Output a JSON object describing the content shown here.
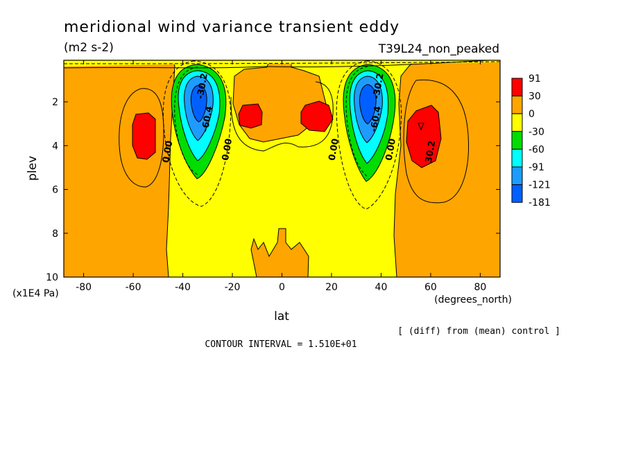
{
  "chart_data": {
    "type": "contour",
    "title": "meridional wind variance transient eddy",
    "units": "(m2 s-2)",
    "run_label": "T39L24_non_peaked",
    "xlabel": "lat",
    "xunits": "(degrees_north)",
    "ylabel": "plev",
    "yunits": "(x1E4 Pa)",
    "xlim": [
      -88,
      88
    ],
    "ylim": [
      10,
      0.1
    ],
    "x_ticks": [
      -80,
      -60,
      -40,
      -20,
      0,
      20,
      40,
      60,
      80
    ],
    "x_tick_labels": [
      "-80",
      "-60",
      "-40",
      "-20",
      "0",
      "20",
      "40",
      "60",
      "80"
    ],
    "y_ticks": [
      2,
      4,
      6,
      8,
      10
    ],
    "y_tick_labels": [
      "2",
      "4",
      "6",
      "8",
      "10"
    ],
    "legend": {
      "position": "right",
      "levels": [
        "91",
        "30",
        "0",
        "-30",
        "-60",
        "-91",
        "-121",
        "-181"
      ],
      "colors": [
        "#ff0000",
        "#ffa500",
        "#ffff00",
        "#00dd00",
        "#00ffff",
        "#1e9bff",
        "#0060ff"
      ]
    },
    "contour_labels": [
      {
        "text": "0.00",
        "lat": -45,
        "plev": 4.3
      },
      {
        "text": "0.00",
        "lat": -21,
        "plev": 4.2
      },
      {
        "text": "0.00",
        "lat": 22,
        "plev": 4.2
      },
      {
        "text": "0.00",
        "lat": 45,
        "plev": 4.2
      },
      {
        "text": "-60.4",
        "lat": -29,
        "plev": 2.8
      },
      {
        "text": "-30.2",
        "lat": -31,
        "plev": 1.3
      },
      {
        "text": "-60.4",
        "lat": 39,
        "plev": 2.8
      },
      {
        "text": "-30.2",
        "lat": 40,
        "plev": 1.3
      },
      {
        "text": "30.2",
        "lat": 61,
        "plev": 4.3
      }
    ],
    "features": [
      {
        "type": "minimum",
        "lat": -33,
        "plev": 2.2,
        "value_range": "-121 to -181"
      },
      {
        "type": "minimum",
        "lat": 36,
        "plev": 2.2,
        "value_range": "-121 to -181"
      },
      {
        "type": "maximum",
        "lat": -56,
        "plev": 3.5,
        "value_range": "30 to 91"
      },
      {
        "type": "maximum",
        "lat": -12,
        "plev": 2.7,
        "value_range": "30 to 91"
      },
      {
        "type": "maximum",
        "lat": 14,
        "plev": 2.7,
        "value_range": "30 to 91"
      },
      {
        "type": "maximum",
        "lat": 57,
        "plev": 3.6,
        "value_range": "30 to 91"
      }
    ],
    "footer_note": "[ (diff) from (mean) control ]",
    "contour_interval": "CONTOUR INTERVAL = 1.510E+01"
  }
}
